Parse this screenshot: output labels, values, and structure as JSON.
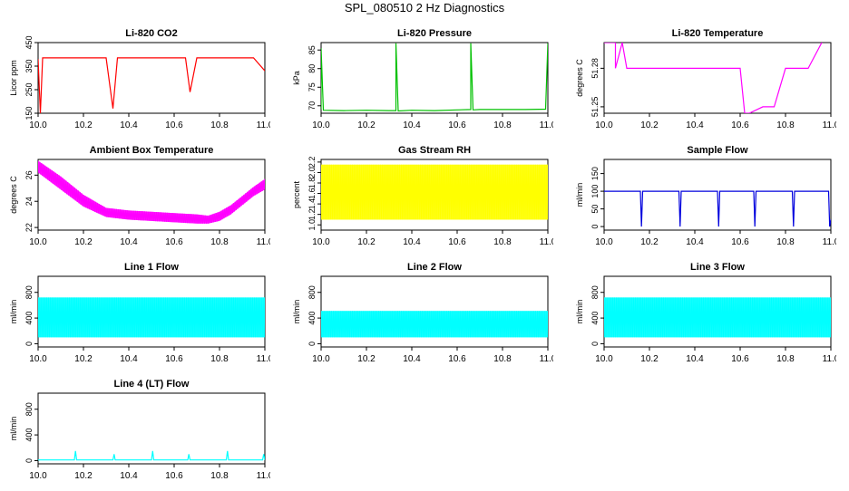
{
  "figure": {
    "title": "SPL_080510  2 Hz Diagnostics"
  },
  "chart_data": [
    {
      "type": "line",
      "title": "Li-820 CO2",
      "xlabel": "",
      "ylabel": "Licor ppm",
      "xlim": [
        10.0,
        11.0
      ],
      "ylim": [
        150,
        450
      ],
      "xticks": [
        "10.0",
        "10.2",
        "10.4",
        "10.6",
        "10.8",
        "11.0"
      ],
      "yticks": [
        "150",
        "250",
        "350",
        "450"
      ],
      "color": "#ff0000",
      "series": [
        {
          "x": [
            10.0,
            10.01,
            10.02,
            10.05,
            10.1,
            10.15,
            10.2,
            10.25,
            10.3,
            10.33,
            10.35,
            10.4,
            10.45,
            10.5,
            10.55,
            10.6,
            10.65,
            10.67,
            10.7,
            10.75,
            10.8,
            10.85,
            10.9,
            10.95,
            11.0
          ],
          "y": [
            380,
            150,
            385,
            385,
            385,
            385,
            385,
            385,
            385,
            170,
            385,
            385,
            385,
            385,
            385,
            385,
            385,
            240,
            385,
            385,
            385,
            385,
            385,
            385,
            330
          ]
        }
      ]
    },
    {
      "type": "line",
      "title": "Li-820 Pressure",
      "xlabel": "",
      "ylabel": "kPa",
      "xlim": [
        10.0,
        11.0
      ],
      "ylim": [
        68,
        87
      ],
      "xticks": [
        "10.0",
        "10.2",
        "10.4",
        "10.6",
        "10.8",
        "11.0"
      ],
      "yticks": [
        "70",
        "75",
        "80",
        "85"
      ],
      "color": "#00c000",
      "series": [
        {
          "x": [
            10.0,
            10.0,
            10.01,
            10.1,
            10.2,
            10.3,
            10.33,
            10.33,
            10.34,
            10.4,
            10.5,
            10.6,
            10.66,
            10.66,
            10.67,
            10.7,
            10.8,
            10.9,
            10.99,
            11.0
          ],
          "y": [
            69,
            85.5,
            68.8,
            68.7,
            68.8,
            68.7,
            68.7,
            86.8,
            68.6,
            68.8,
            68.7,
            68.9,
            69,
            86.8,
            68.9,
            69,
            69,
            69,
            69.1,
            86.8
          ]
        }
      ]
    },
    {
      "type": "line",
      "title": "Li-820 Temperature",
      "xlabel": "",
      "ylabel": "degrees C",
      "xlim": [
        10.0,
        11.0
      ],
      "ylim": [
        51.245,
        51.3
      ],
      "xticks": [
        "10.0",
        "10.2",
        "10.4",
        "10.6",
        "10.8",
        "11.0"
      ],
      "yticks": [
        "51.25",
        "51.28"
      ],
      "color": "#ff00ff",
      "series": [
        {
          "x": [
            10.0,
            10.05,
            10.05,
            10.08,
            10.1,
            10.2,
            10.3,
            10.4,
            10.5,
            10.6,
            10.62,
            10.64,
            10.7,
            10.75,
            10.8,
            10.9,
            10.96
          ],
          "y": [
            51.3,
            51.3,
            51.28,
            51.3,
            51.28,
            51.28,
            51.28,
            51.28,
            51.28,
            51.28,
            51.245,
            51.245,
            51.25,
            51.25,
            51.28,
            51.28,
            51.3
          ]
        }
      ]
    },
    {
      "type": "area",
      "title": "Ambient Box Temperature",
      "xlabel": "",
      "ylabel": "degrees C",
      "xlim": [
        10.0,
        11.0
      ],
      "ylim": [
        21.8,
        27.2
      ],
      "xticks": [
        "10.0",
        "10.2",
        "10.4",
        "10.6",
        "10.8",
        "11.0"
      ],
      "yticks": [
        "22",
        "24",
        "26"
      ],
      "color": "#ff00ff",
      "series": [
        {
          "x": [
            10.0,
            10.1,
            10.2,
            10.3,
            10.4,
            10.5,
            10.6,
            10.7,
            10.75,
            10.8,
            10.85,
            10.9,
            10.95,
            11.0
          ],
          "low": [
            26.2,
            24.9,
            23.6,
            22.8,
            22.6,
            22.5,
            22.4,
            22.3,
            22.3,
            22.5,
            23.0,
            23.7,
            24.4,
            24.9
          ],
          "high": [
            27.1,
            25.9,
            24.5,
            23.5,
            23.3,
            23.2,
            23.1,
            23.0,
            22.9,
            23.2,
            23.7,
            24.4,
            25.1,
            25.7
          ]
        }
      ]
    },
    {
      "type": "area",
      "title": "Gas Stream RH",
      "xlabel": "",
      "ylabel": "percent",
      "xlim": [
        10.0,
        11.0
      ],
      "ylim": [
        0.9,
        2.25
      ],
      "xticks": [
        "10.0",
        "10.2",
        "10.4",
        "10.6",
        "10.8",
        "11.0"
      ],
      "yticks": [
        "1.0",
        "1.2",
        "1.4",
        "1.6",
        "1.8",
        "2.0",
        "2.2"
      ],
      "color": "#ffff00",
      "series": [
        {
          "x": [
            10.0,
            11.0
          ],
          "low": [
            1.1,
            1.1
          ],
          "high": [
            2.15,
            2.15
          ]
        }
      ]
    },
    {
      "type": "line",
      "title": "Sample Flow",
      "xlabel": "",
      "ylabel": "ml/min",
      "xlim": [
        10.0,
        11.0
      ],
      "ylim": [
        -10,
        190
      ],
      "xticks": [
        "10.0",
        "10.2",
        "10.4",
        "10.6",
        "10.8",
        "11.0"
      ],
      "yticks": [
        "0",
        "50",
        "100",
        "150"
      ],
      "color": "#0000dd",
      "series": [
        {
          "x": [
            10.0,
            10.16,
            10.165,
            10.17,
            10.33,
            10.335,
            10.34,
            10.5,
            10.505,
            10.51,
            10.66,
            10.665,
            10.67,
            10.83,
            10.835,
            10.84,
            10.99,
            10.995,
            11.0
          ],
          "y": [
            100,
            100,
            0,
            100,
            100,
            0,
            100,
            100,
            0,
            100,
            100,
            0,
            100,
            100,
            0,
            100,
            100,
            0,
            20
          ]
        }
      ]
    },
    {
      "type": "area",
      "title": "Line 1 Flow",
      "xlabel": "",
      "ylabel": "ml/min",
      "xlim": [
        10.0,
        11.0
      ],
      "ylim": [
        -50,
        1050
      ],
      "xticks": [
        "10.0",
        "10.2",
        "10.4",
        "10.6",
        "10.8",
        "11.0"
      ],
      "yticks": [
        "0",
        "400",
        "800"
      ],
      "color": "#00ffff",
      "series": [
        {
          "x": [
            10.0,
            11.0
          ],
          "low": [
            100,
            100
          ],
          "high": [
            720,
            720
          ]
        }
      ]
    },
    {
      "type": "area",
      "title": "Line 2 Flow",
      "xlabel": "",
      "ylabel": "ml/min",
      "xlim": [
        10.0,
        11.0
      ],
      "ylim": [
        -50,
        1050
      ],
      "xticks": [
        "10.0",
        "10.2",
        "10.4",
        "10.6",
        "10.8",
        "11.0"
      ],
      "yticks": [
        "0",
        "400",
        "800"
      ],
      "color": "#00ffff",
      "series": [
        {
          "x": [
            10.0,
            11.0
          ],
          "low": [
            100,
            100
          ],
          "high": [
            510,
            510
          ]
        }
      ]
    },
    {
      "type": "area",
      "title": "Line 3 Flow",
      "xlabel": "",
      "ylabel": "ml/min",
      "xlim": [
        10.0,
        11.0
      ],
      "ylim": [
        -50,
        1050
      ],
      "xticks": [
        "10.0",
        "10.2",
        "10.4",
        "10.6",
        "10.8",
        "11.0"
      ],
      "yticks": [
        "0",
        "400",
        "800"
      ],
      "color": "#00ffff",
      "series": [
        {
          "x": [
            10.0,
            11.0
          ],
          "low": [
            100,
            100
          ],
          "high": [
            720,
            720
          ]
        }
      ]
    },
    {
      "type": "line",
      "title": "Line 4 (LT) Flow",
      "xlabel": "",
      "ylabel": "ml/min",
      "xlim": [
        10.0,
        11.0
      ],
      "ylim": [
        -50,
        1050
      ],
      "xticks": [
        "10.0",
        "10.2",
        "10.4",
        "10.6",
        "10.8",
        "11.0"
      ],
      "yticks": [
        "0",
        "400",
        "800"
      ],
      "color": "#00ffff",
      "series": [
        {
          "x": [
            10.0,
            10.16,
            10.165,
            10.17,
            10.33,
            10.335,
            10.34,
            10.5,
            10.505,
            10.51,
            10.66,
            10.665,
            10.67,
            10.83,
            10.835,
            10.84,
            10.99,
            10.995,
            11.0
          ],
          "y": [
            10,
            10,
            150,
            10,
            10,
            100,
            10,
            10,
            150,
            10,
            10,
            100,
            10,
            10,
            150,
            10,
            10,
            100,
            10
          ]
        }
      ]
    }
  ]
}
